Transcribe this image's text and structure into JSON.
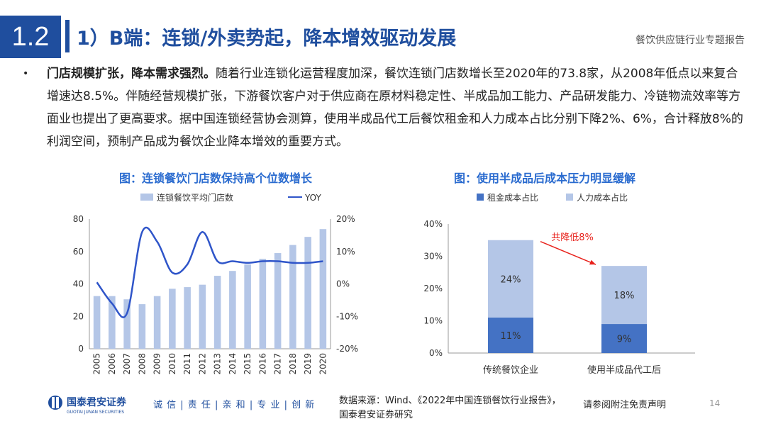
{
  "header": {
    "section_number": "1.2",
    "title": "1）B端：连锁/外卖势起，降本增效驱动发展",
    "report_name": "餐饮供应链行业专题报告"
  },
  "body": {
    "bullet": "•",
    "bold_text": "门店规模扩张，降本需求强烈。",
    "text": "随着行业连锁化运营程度加深，餐饮连锁门店数增长至2020年的73.8家，从2008年低点以来复合增速达8.5%。伴随经营规模扩张，下游餐饮客户对于供应商在原材料稳定性、半成品加工能力、产品研发能力、冷链物流效率等方面业也提出了更高要求。据中国连锁经营协会测算，使用半成品代工后餐饮租金和人力成本占比分别下降2%、6%，合计释放8%的利润空间，预制产品成为餐饮企业降本增效的重要方式。"
  },
  "chart_data": [
    {
      "type": "bar+line",
      "title": "图：连锁餐饮门店数保持高个位数增长",
      "categories": [
        "2005",
        "2006",
        "2007",
        "2008",
        "2009",
        "2010",
        "2011",
        "2012",
        "2013",
        "2014",
        "2015",
        "2016",
        "2017",
        "2018",
        "2019",
        "2020"
      ],
      "series": [
        {
          "name": "连锁餐饮平均门店数",
          "type": "bar",
          "axis": "left",
          "values": [
            32.5,
            32.5,
            30.5,
            27.5,
            32.5,
            37,
            38,
            39.5,
            45,
            48,
            52,
            55.5,
            59,
            64,
            69,
            73.8
          ],
          "color": "#b4c6e7"
        },
        {
          "name": "YOY",
          "type": "line",
          "axis": "right",
          "values": [
            0.5,
            -6,
            -9,
            16,
            13,
            3.5,
            6,
            16,
            7,
            7,
            6.5,
            7,
            7,
            6.5,
            6.5,
            7
          ],
          "color": "#2f55c9"
        }
      ],
      "left_axis": {
        "ylim": [
          0,
          80
        ],
        "ticks": [
          "0",
          "20",
          "40",
          "60",
          "80"
        ]
      },
      "right_axis": {
        "ylim": [
          -20,
          20
        ],
        "ticks": [
          "-20%",
          "-10%",
          "0%",
          "10%",
          "20%"
        ]
      },
      "legend": [
        "连锁餐饮平均门店数",
        "YOY"
      ]
    },
    {
      "type": "stacked-bar",
      "title": "图：使用半成品后成本压力明显缓解",
      "categories": [
        "传统餐饮企业",
        "使用半成品代工后"
      ],
      "series": [
        {
          "name": "租金成本占比",
          "values": [
            11,
            9
          ],
          "color": "#4472c4",
          "labels": [
            "11%",
            "9%"
          ]
        },
        {
          "name": "人力成本占比",
          "values": [
            24,
            18
          ],
          "color": "#b4c6e7",
          "labels": [
            "24%",
            "18%"
          ]
        }
      ],
      "ylim": [
        0,
        40
      ],
      "ticks": [
        "0%",
        "10%",
        "20%",
        "30%",
        "40%"
      ],
      "annotation": "共降低8%",
      "annotation_color": "#e8221c",
      "legend": [
        "租金成本占比",
        "人力成本占比"
      ]
    }
  ],
  "footer": {
    "company_name": "国泰君安证券",
    "company_name_en": "GUOTAI JUNAN SECURITIES",
    "slogan": "诚 信 | 责 任 | 亲 和 | 专 业 | 创 新",
    "source": "数据来源：Wind、《2022年中国连锁餐饮行业报告》，国泰君安证券研究",
    "disclaimer": "请参阅附注免责声明",
    "page_number": "14"
  }
}
